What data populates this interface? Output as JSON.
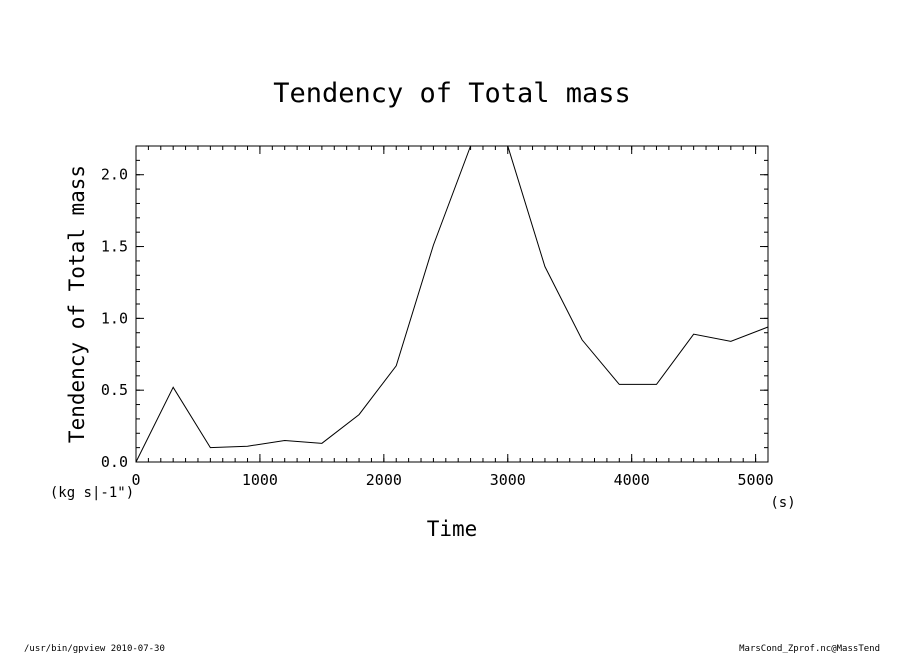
{
  "chart_data": {
    "type": "line",
    "title": "Tendency of Total mass",
    "xlabel": "Time",
    "ylabel": "Tendency of Total mass",
    "x_unit": "(s)",
    "y_unit": "(kg s|-1\")",
    "xlim": [
      0,
      5100
    ],
    "ylim": [
      0,
      2.2
    ],
    "x_ticks": [
      0,
      1000,
      2000,
      3000,
      4000,
      5000
    ],
    "x_tick_labels": [
      "0",
      "1000",
      "2000",
      "3000",
      "4000",
      "5000"
    ],
    "y_ticks": [
      0,
      0.5,
      1.0,
      1.5,
      2.0
    ],
    "y_tick_labels": [
      "0.0",
      "0.5",
      "1.0",
      "1.5",
      "2.0"
    ],
    "x_minor_step": 100,
    "y_minor_step": 0.1,
    "grid": false,
    "series": [
      {
        "x": [
          0,
          300,
          600,
          900,
          1200,
          1500,
          1800,
          2100,
          2400,
          2700,
          3000,
          3300,
          3600,
          3900,
          4200,
          4500,
          4800,
          5100
        ],
        "values": [
          0.0,
          0.52,
          0.1,
          0.11,
          0.15,
          0.13,
          0.33,
          0.67,
          1.51,
          2.2,
          2.2,
          1.36,
          0.85,
          0.54,
          0.54,
          0.89,
          0.84,
          0.94
        ]
      }
    ]
  },
  "footer": {
    "left": "/usr/bin/gpview  2010-07-30",
    "right": "MarsCond_Zprof.nc@MassTend"
  }
}
